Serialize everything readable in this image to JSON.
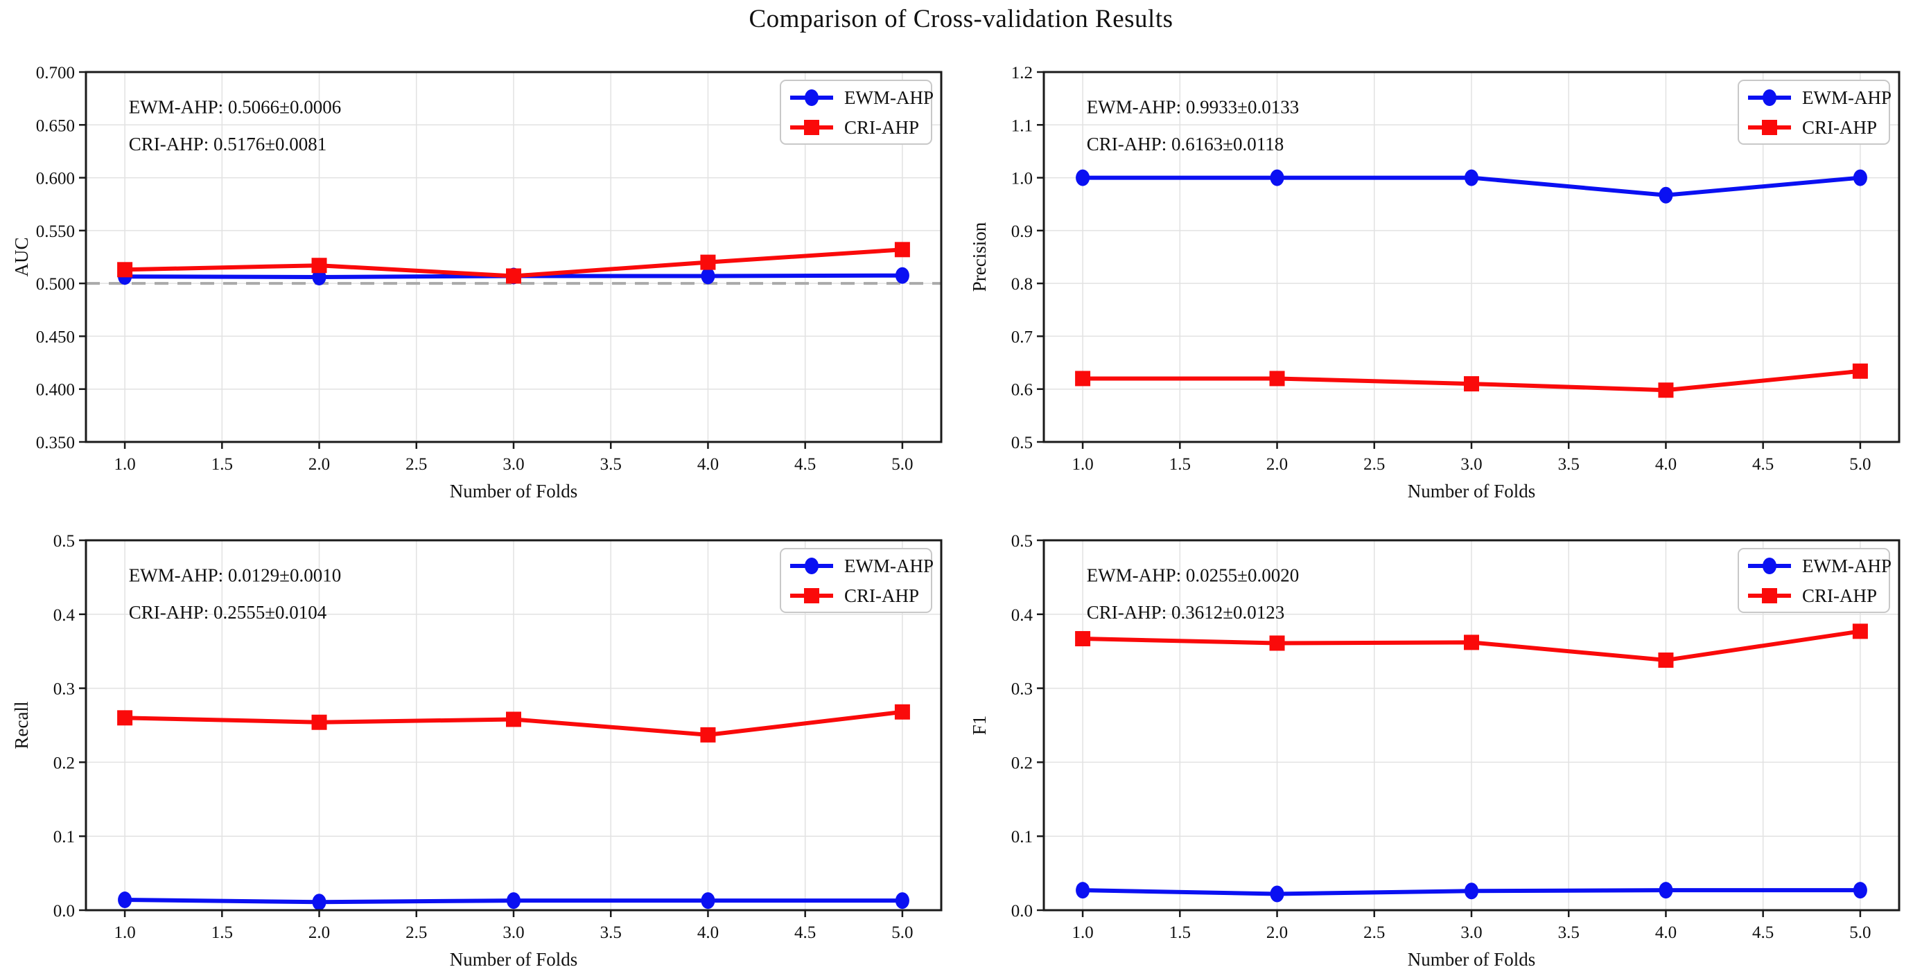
{
  "title": "Comparison of Cross-validation Results",
  "colors": {
    "ewm_blue": "#0a10f2",
    "cri_red": "#fa0a0a",
    "baseline_gray": "#aaaaaa",
    "grid_gray": "#e2e2e2",
    "spine_black": "#1a1a1a"
  },
  "chart_data": [
    {
      "type": "line",
      "title": "",
      "xlabel": "Number of Folds",
      "ylabel": "AUC",
      "x": [
        1.0,
        2.0,
        3.0,
        4.0,
        5.0
      ],
      "xlim": [
        0.8,
        5.2
      ],
      "xticks": [
        1.0,
        1.5,
        2.0,
        2.5,
        3.0,
        3.5,
        4.0,
        4.5,
        5.0
      ],
      "ylim": [
        0.35,
        0.7
      ],
      "yticks": [
        0.35,
        0.4,
        0.45,
        0.5,
        0.55,
        0.6,
        0.65,
        0.7
      ],
      "ytick_decimals": 3,
      "grid": true,
      "baseline": 0.5,
      "legend_position": "upper-right",
      "series": [
        {
          "name": "EWM-AHP",
          "marker": "circle",
          "color": "#0a10f2",
          "values": [
            0.5065,
            0.506,
            0.507,
            0.507,
            0.5075
          ]
        },
        {
          "name": "CRI-AHP",
          "marker": "square",
          "color": "#fa0a0a",
          "values": [
            0.513,
            0.517,
            0.507,
            0.52,
            0.532
          ]
        }
      ],
      "annotations": [
        {
          "text": "EWM-AHP: 0.5066±0.0006",
          "color": "#0a10f2"
        },
        {
          "text": "CRI-AHP: 0.5176±0.0081",
          "color": "#fa0a0a"
        }
      ]
    },
    {
      "type": "line",
      "title": "",
      "xlabel": "Number of Folds",
      "ylabel": "Precision",
      "x": [
        1.0,
        2.0,
        3.0,
        4.0,
        5.0
      ],
      "xlim": [
        0.8,
        5.2
      ],
      "xticks": [
        1.0,
        1.5,
        2.0,
        2.5,
        3.0,
        3.5,
        4.0,
        4.5,
        5.0
      ],
      "ylim": [
        0.5,
        1.2
      ],
      "yticks": [
        0.5,
        0.6,
        0.7,
        0.8,
        0.9,
        1.0,
        1.1,
        1.2
      ],
      "ytick_decimals": 1,
      "grid": true,
      "baseline": null,
      "legend_position": "upper-right",
      "series": [
        {
          "name": "EWM-AHP",
          "marker": "circle",
          "color": "#0a10f2",
          "values": [
            1.0,
            1.0,
            1.0,
            0.967,
            1.0
          ]
        },
        {
          "name": "CRI-AHP",
          "marker": "square",
          "color": "#fa0a0a",
          "values": [
            0.62,
            0.62,
            0.61,
            0.598,
            0.634
          ]
        }
      ],
      "annotations": [
        {
          "text": "EWM-AHP: 0.9933±0.0133",
          "color": "#0a10f2"
        },
        {
          "text": "CRI-AHP: 0.6163±0.0118",
          "color": "#fa0a0a"
        }
      ]
    },
    {
      "type": "line",
      "title": "",
      "xlabel": "Number of Folds",
      "ylabel": "Recall",
      "x": [
        1.0,
        2.0,
        3.0,
        4.0,
        5.0
      ],
      "xlim": [
        0.8,
        5.2
      ],
      "xticks": [
        1.0,
        1.5,
        2.0,
        2.5,
        3.0,
        3.5,
        4.0,
        4.5,
        5.0
      ],
      "ylim": [
        0.0,
        0.5
      ],
      "yticks": [
        0.0,
        0.1,
        0.2,
        0.3,
        0.4,
        0.5
      ],
      "ytick_decimals": 1,
      "grid": true,
      "baseline": null,
      "legend_position": "upper-right",
      "series": [
        {
          "name": "EWM-AHP",
          "marker": "circle",
          "color": "#0a10f2",
          "values": [
            0.014,
            0.011,
            0.013,
            0.013,
            0.013
          ]
        },
        {
          "name": "CRI-AHP",
          "marker": "square",
          "color": "#fa0a0a",
          "values": [
            0.26,
            0.254,
            0.258,
            0.237,
            0.268
          ]
        }
      ],
      "annotations": [
        {
          "text": "EWM-AHP: 0.0129±0.0010",
          "color": "#0a10f2"
        },
        {
          "text": "CRI-AHP: 0.2555±0.0104",
          "color": "#fa0a0a"
        }
      ]
    },
    {
      "type": "line",
      "title": "",
      "xlabel": "Number of Folds",
      "ylabel": "F1",
      "x": [
        1.0,
        2.0,
        3.0,
        4.0,
        5.0
      ],
      "xlim": [
        0.8,
        5.2
      ],
      "xticks": [
        1.0,
        1.5,
        2.0,
        2.5,
        3.0,
        3.5,
        4.0,
        4.5,
        5.0
      ],
      "ylim": [
        0.0,
        0.5
      ],
      "yticks": [
        0.0,
        0.1,
        0.2,
        0.3,
        0.4,
        0.5
      ],
      "ytick_decimals": 1,
      "grid": true,
      "baseline": null,
      "legend_position": "upper-right",
      "series": [
        {
          "name": "EWM-AHP",
          "marker": "circle",
          "color": "#0a10f2",
          "values": [
            0.027,
            0.022,
            0.026,
            0.027,
            0.027
          ]
        },
        {
          "name": "CRI-AHP",
          "marker": "square",
          "color": "#fa0a0a",
          "values": [
            0.367,
            0.361,
            0.362,
            0.338,
            0.377
          ]
        }
      ],
      "annotations": [
        {
          "text": "EWM-AHP: 0.0255±0.0020",
          "color": "#0a10f2"
        },
        {
          "text": "CRI-AHP: 0.3612±0.0123",
          "color": "#fa0a0a"
        }
      ]
    }
  ]
}
